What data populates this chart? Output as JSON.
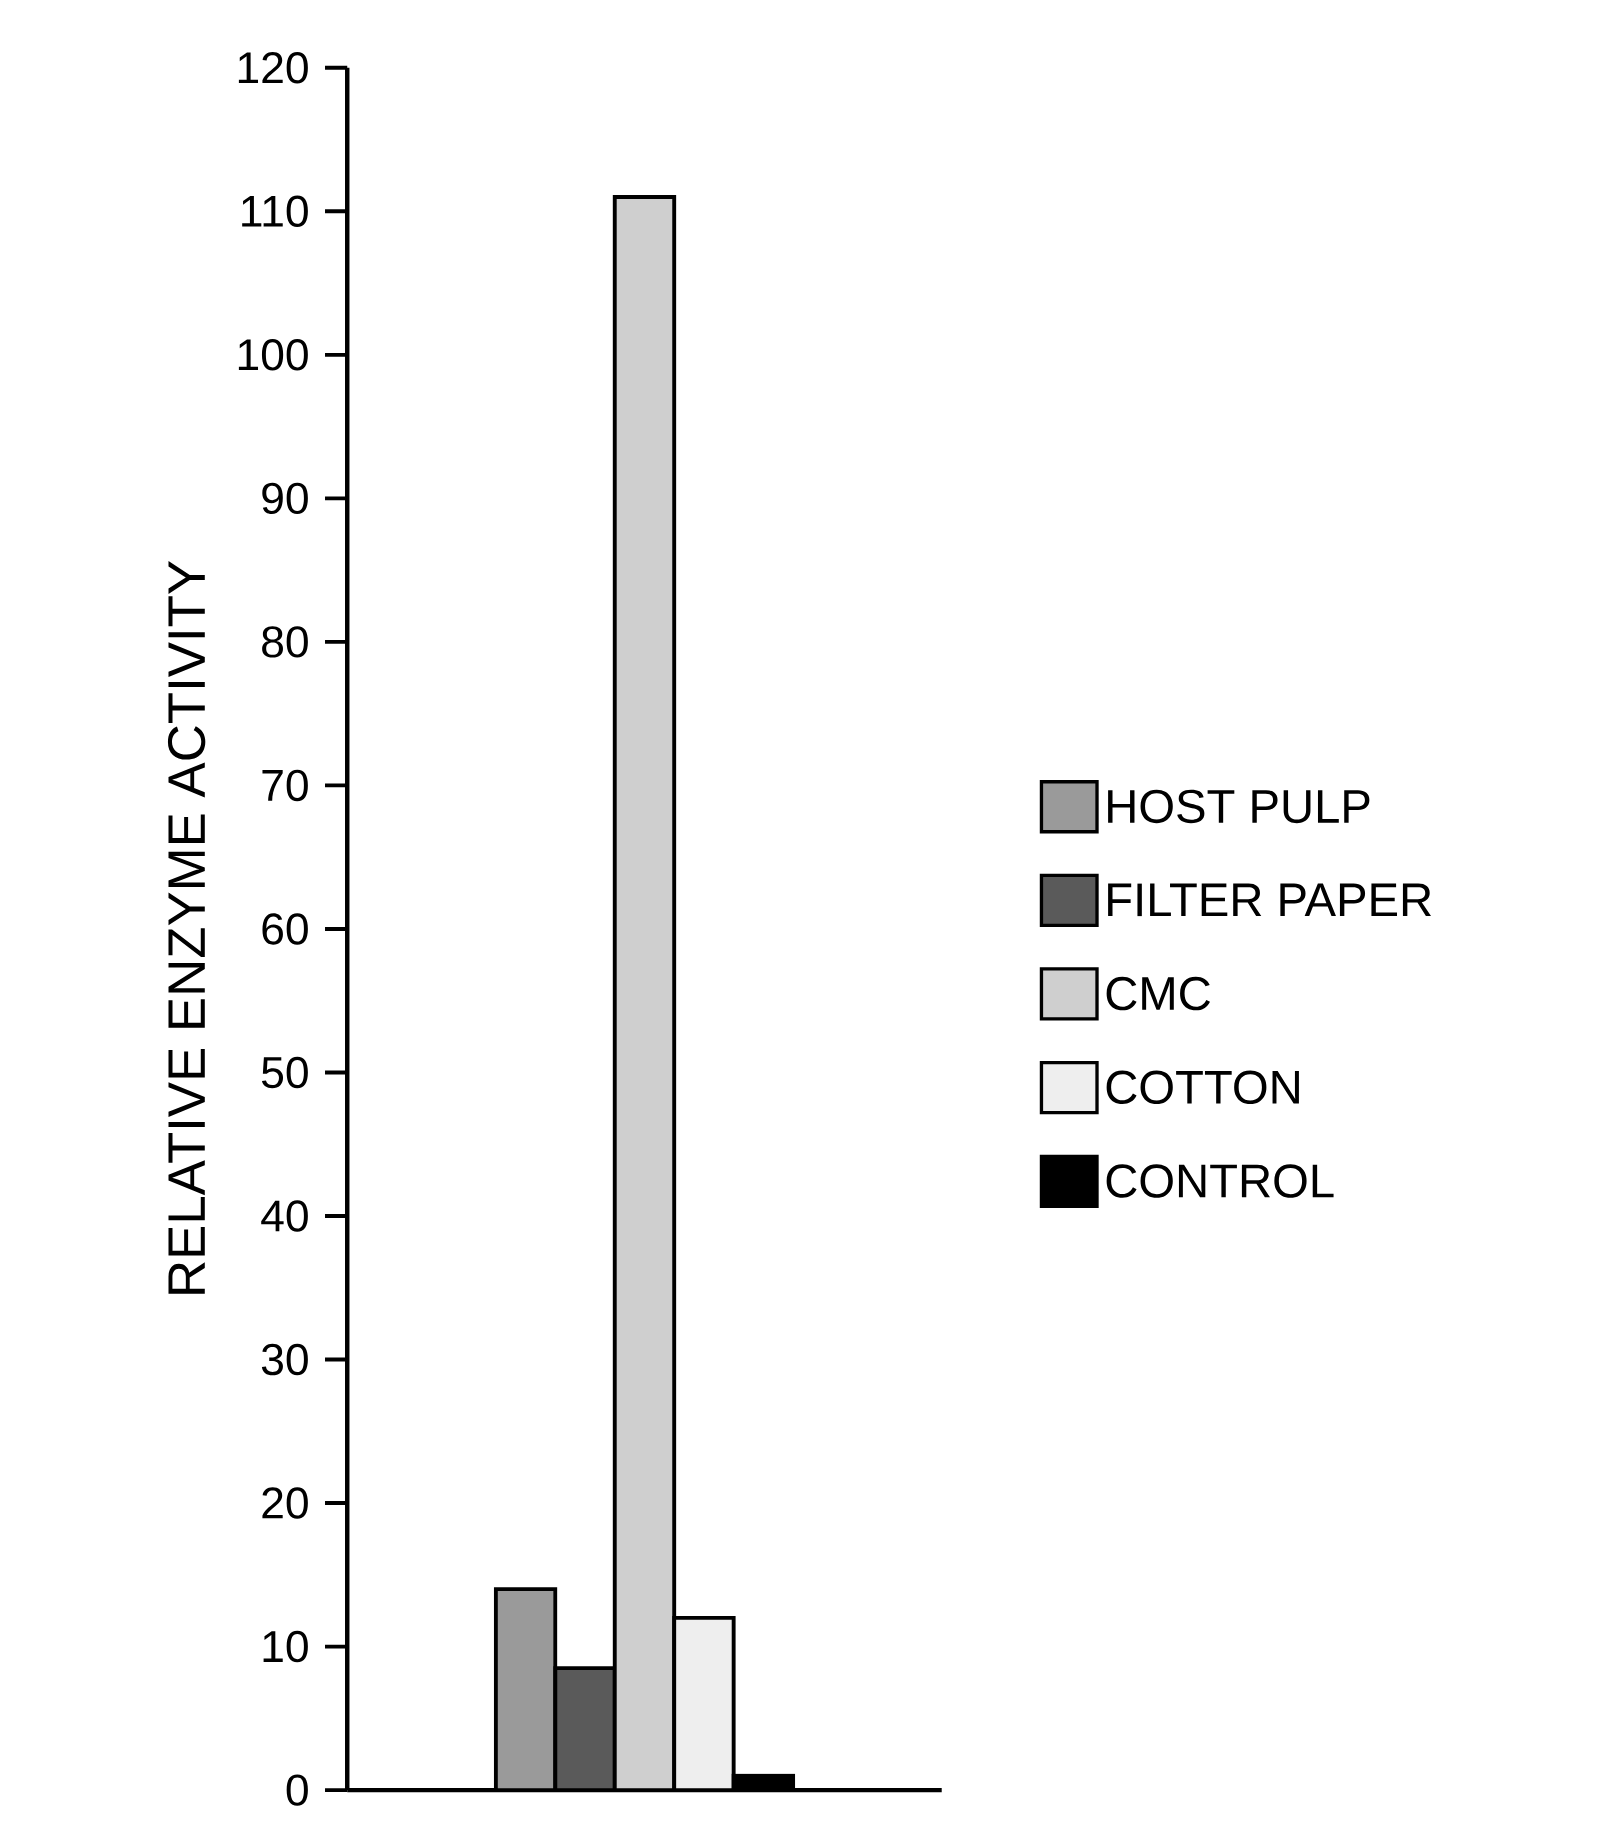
{
  "chart_data": {
    "type": "bar",
    "ylabel": "RELATIVE ENZYME ACTIVITY",
    "categories": [
      null
    ],
    "series": [
      {
        "name": "HOST PULP",
        "color": "#9a9a9a",
        "values": [
          14
        ]
      },
      {
        "name": "FILTER PAPER",
        "color": "#5a5a5a",
        "values": [
          8.5
        ]
      },
      {
        "name": "CMC",
        "color": "#cfcfcf",
        "values": [
          111
        ]
      },
      {
        "name": "COTTON",
        "color": "#eeeeee",
        "values": [
          12
        ]
      },
      {
        "name": "CONTROL",
        "color": "#000000",
        "values": [
          1
        ]
      }
    ],
    "ylim": [
      0,
      120
    ],
    "yticks": [
      0,
      10,
      20,
      30,
      40,
      50,
      60,
      70,
      80,
      90,
      100,
      110,
      120
    ],
    "tick_labels": "y",
    "grid": false,
    "legend": "right"
  }
}
